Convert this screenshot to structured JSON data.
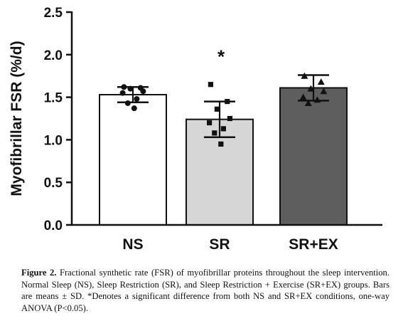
{
  "chart_data": {
    "type": "bar",
    "ylabel": "Myofibrillar FSR (%/d)",
    "ylim": [
      0,
      2.5
    ],
    "yticks": [
      "0.0",
      "0.5",
      "1.0",
      "1.5",
      "2.0",
      "2.5"
    ],
    "categories": [
      "NS",
      "SR",
      "SR+EX"
    ],
    "means": [
      1.53,
      1.24,
      1.61
    ],
    "sd": [
      0.09,
      0.21,
      0.15
    ],
    "bar_colors": [
      "#ffffff",
      "#d6d6d6",
      "#5e5e5e"
    ],
    "points": [
      [
        1.62,
        1.61,
        1.6,
        1.57,
        1.55,
        1.48,
        1.43,
        1.37
      ],
      [
        1.65,
        1.45,
        1.36,
        1.25,
        1.2,
        1.13,
        1.08,
        0.95
      ],
      [
        1.75,
        1.68,
        1.6,
        1.57,
        1.5,
        1.47,
        1.43
      ]
    ],
    "annotations": [
      {
        "category": "SR",
        "text": "*"
      }
    ],
    "grid": false,
    "legend": "none"
  },
  "caption": {
    "label": "Figure 2.",
    "text": "Fractional synthetic rate (FSR) of myofibrillar proteins throughout the sleep intervention. Normal Sleep (NS), Sleep Restriction (SR), and Sleep Restriction + Exercise (SR+EX) groups. Bars are means ± SD. *Denotes a significant difference from both NS and SR+EX conditions, one-way ANOVA (P<0.05)."
  }
}
